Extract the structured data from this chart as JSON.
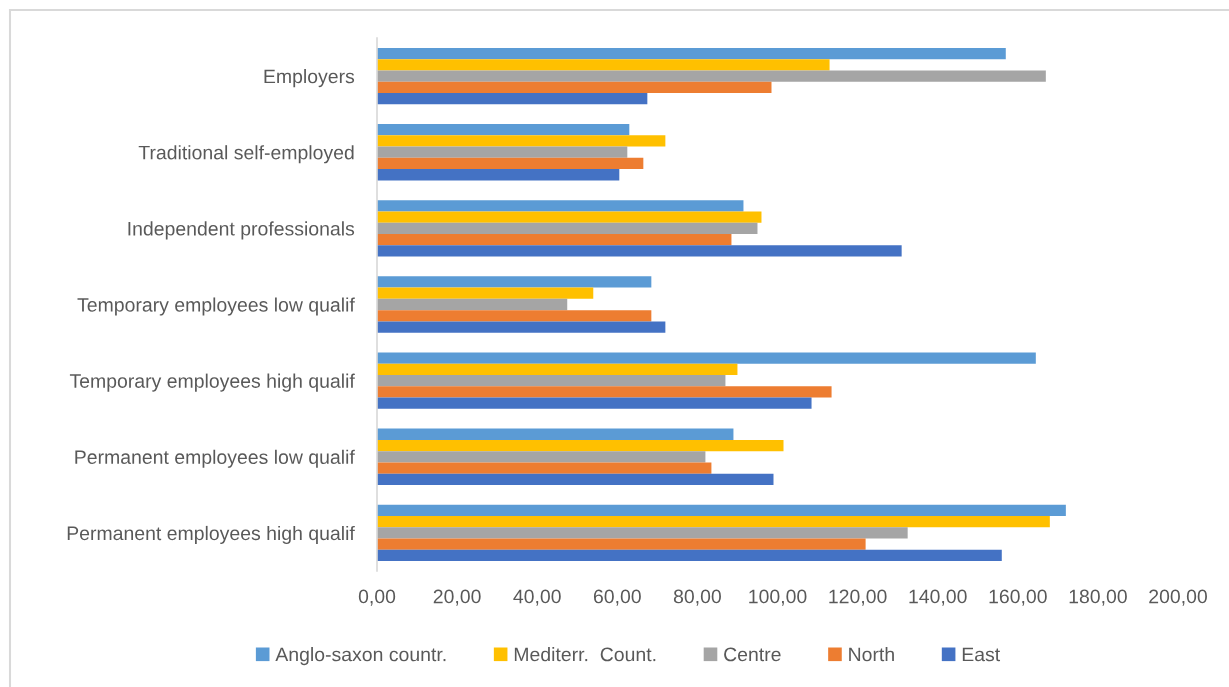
{
  "chart_data": {
    "type": "bar",
    "orientation": "horizontal",
    "categories": [
      "Employers",
      "Traditional self-employed",
      "Independent professionals",
      "Temporary employees low qualif",
      "Temporary employees high qualif",
      "Permanent employees low qualif",
      "Permanent employees high qualif"
    ],
    "series": [
      {
        "name": "Anglo-saxon countr.",
        "color": "#5b9bd5",
        "values": [
          157,
          63,
          91.5,
          68.5,
          164.5,
          89,
          172
        ]
      },
      {
        "name": "Mediterr.  Count.",
        "color": "#ffc000",
        "values": [
          113,
          72,
          96,
          54,
          90,
          101.5,
          168
        ]
      },
      {
        "name": "Centre",
        "color": "#a5a5a5",
        "values": [
          167,
          62.5,
          95,
          47.5,
          87,
          82,
          132.5
        ]
      },
      {
        "name": "North",
        "color": "#ed7d31",
        "values": [
          98.5,
          66.5,
          88.5,
          68.5,
          113.5,
          83.5,
          122
        ]
      },
      {
        "name": "East",
        "color": "#4472c4",
        "values": [
          67.5,
          60.5,
          131,
          72,
          108.5,
          99,
          156
        ]
      }
    ],
    "xlim": [
      0,
      200
    ],
    "xticks": [
      {
        "value": 0,
        "label": "0,00"
      },
      {
        "value": 20,
        "label": "20,00"
      },
      {
        "value": 40,
        "label": "40,00"
      },
      {
        "value": 60,
        "label": "60,00"
      },
      {
        "value": 80,
        "label": "80,00"
      },
      {
        "value": 100,
        "label": "100,00"
      },
      {
        "value": 120,
        "label": "120,00"
      },
      {
        "value": 140,
        "label": "140,00"
      },
      {
        "value": 160,
        "label": "160,00"
      },
      {
        "value": 180,
        "label": "180,00"
      },
      {
        "value": 200,
        "label": "200,00"
      }
    ],
    "legend": "bottom"
  }
}
